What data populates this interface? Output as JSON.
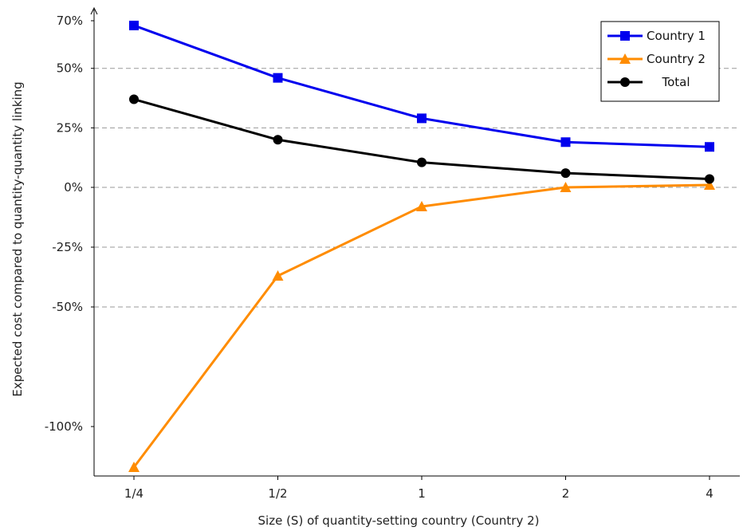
{
  "chart_data": {
    "type": "line",
    "title": "",
    "xlabel": "Size (S) of quantity-setting country (Country 2)",
    "ylabel": "Expected cost compared to quantity-quantity linking",
    "x": [
      0.25,
      0.5,
      1,
      2,
      4
    ],
    "x_tick_labels": [
      "1/4",
      "1/2",
      "1",
      "2",
      "4"
    ],
    "y_tick_values": [
      70,
      50,
      25,
      0,
      -25,
      -50,
      -100
    ],
    "y_tick_labels": [
      "70%",
      "50%",
      "25%",
      "0%",
      "-25%",
      "-50%",
      "-100%"
    ],
    "gridlines_y": [
      50,
      25,
      0,
      -25,
      -50
    ],
    "grid": "dashed horizontal",
    "legend_position": "top-right",
    "series": [
      {
        "name": "Country 1",
        "color": "#0000ee",
        "marker": "square",
        "values": [
          68,
          46,
          29,
          19,
          17
        ]
      },
      {
        "name": "Country 2",
        "color": "#ff8c00",
        "marker": "triangle",
        "values": [
          -117,
          -37,
          -8,
          0,
          1
        ]
      },
      {
        "name": "Total",
        "color": "#000000",
        "marker": "circle",
        "values": [
          37,
          20,
          10.5,
          6,
          3.5
        ]
      }
    ]
  }
}
